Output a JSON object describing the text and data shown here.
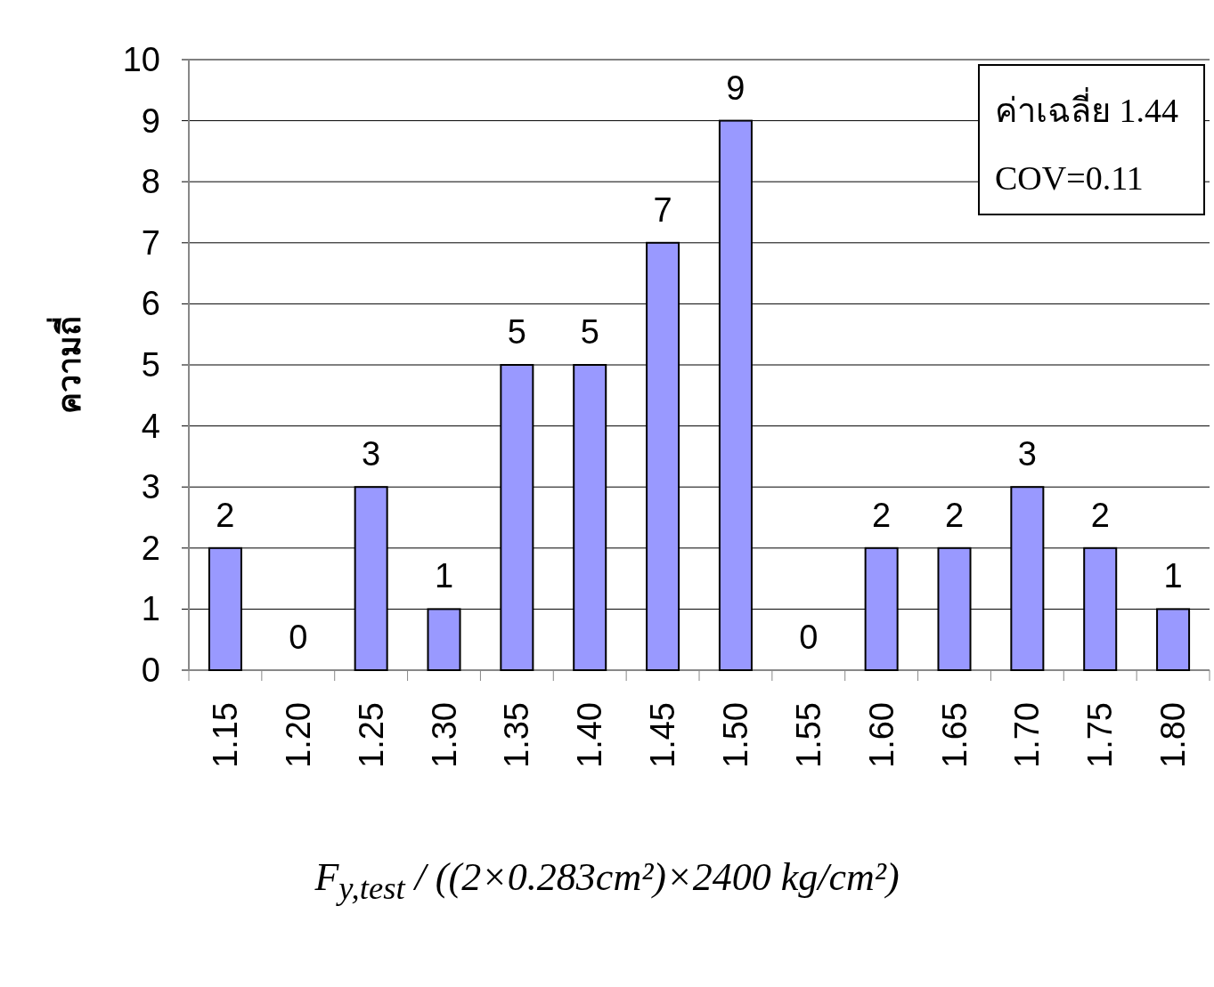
{
  "chart_data": {
    "type": "bar",
    "ylabel": "ความถี่",
    "xlabel": "F$_{y,test}$ / ((2×0.283cm²)×2400 kg/cm²)",
    "categories": [
      "1.15",
      "1.20",
      "1.25",
      "1.30",
      "1.35",
      "1.40",
      "1.45",
      "1.50",
      "1.55",
      "1.60",
      "1.65",
      "1.70",
      "1.75",
      "1.80"
    ],
    "values": [
      2,
      0,
      3,
      1,
      5,
      5,
      7,
      9,
      0,
      2,
      2,
      3,
      2,
      1
    ],
    "color": "#9999ff",
    "ylim": [
      0,
      10
    ],
    "yticks": [
      0,
      1,
      2,
      3,
      4,
      5,
      6,
      7,
      8,
      9,
      10
    ],
    "grid": "y",
    "data_labels": true,
    "annotations": [
      "ค่าเฉลี่ย 1.44",
      "COV=0.11"
    ]
  }
}
